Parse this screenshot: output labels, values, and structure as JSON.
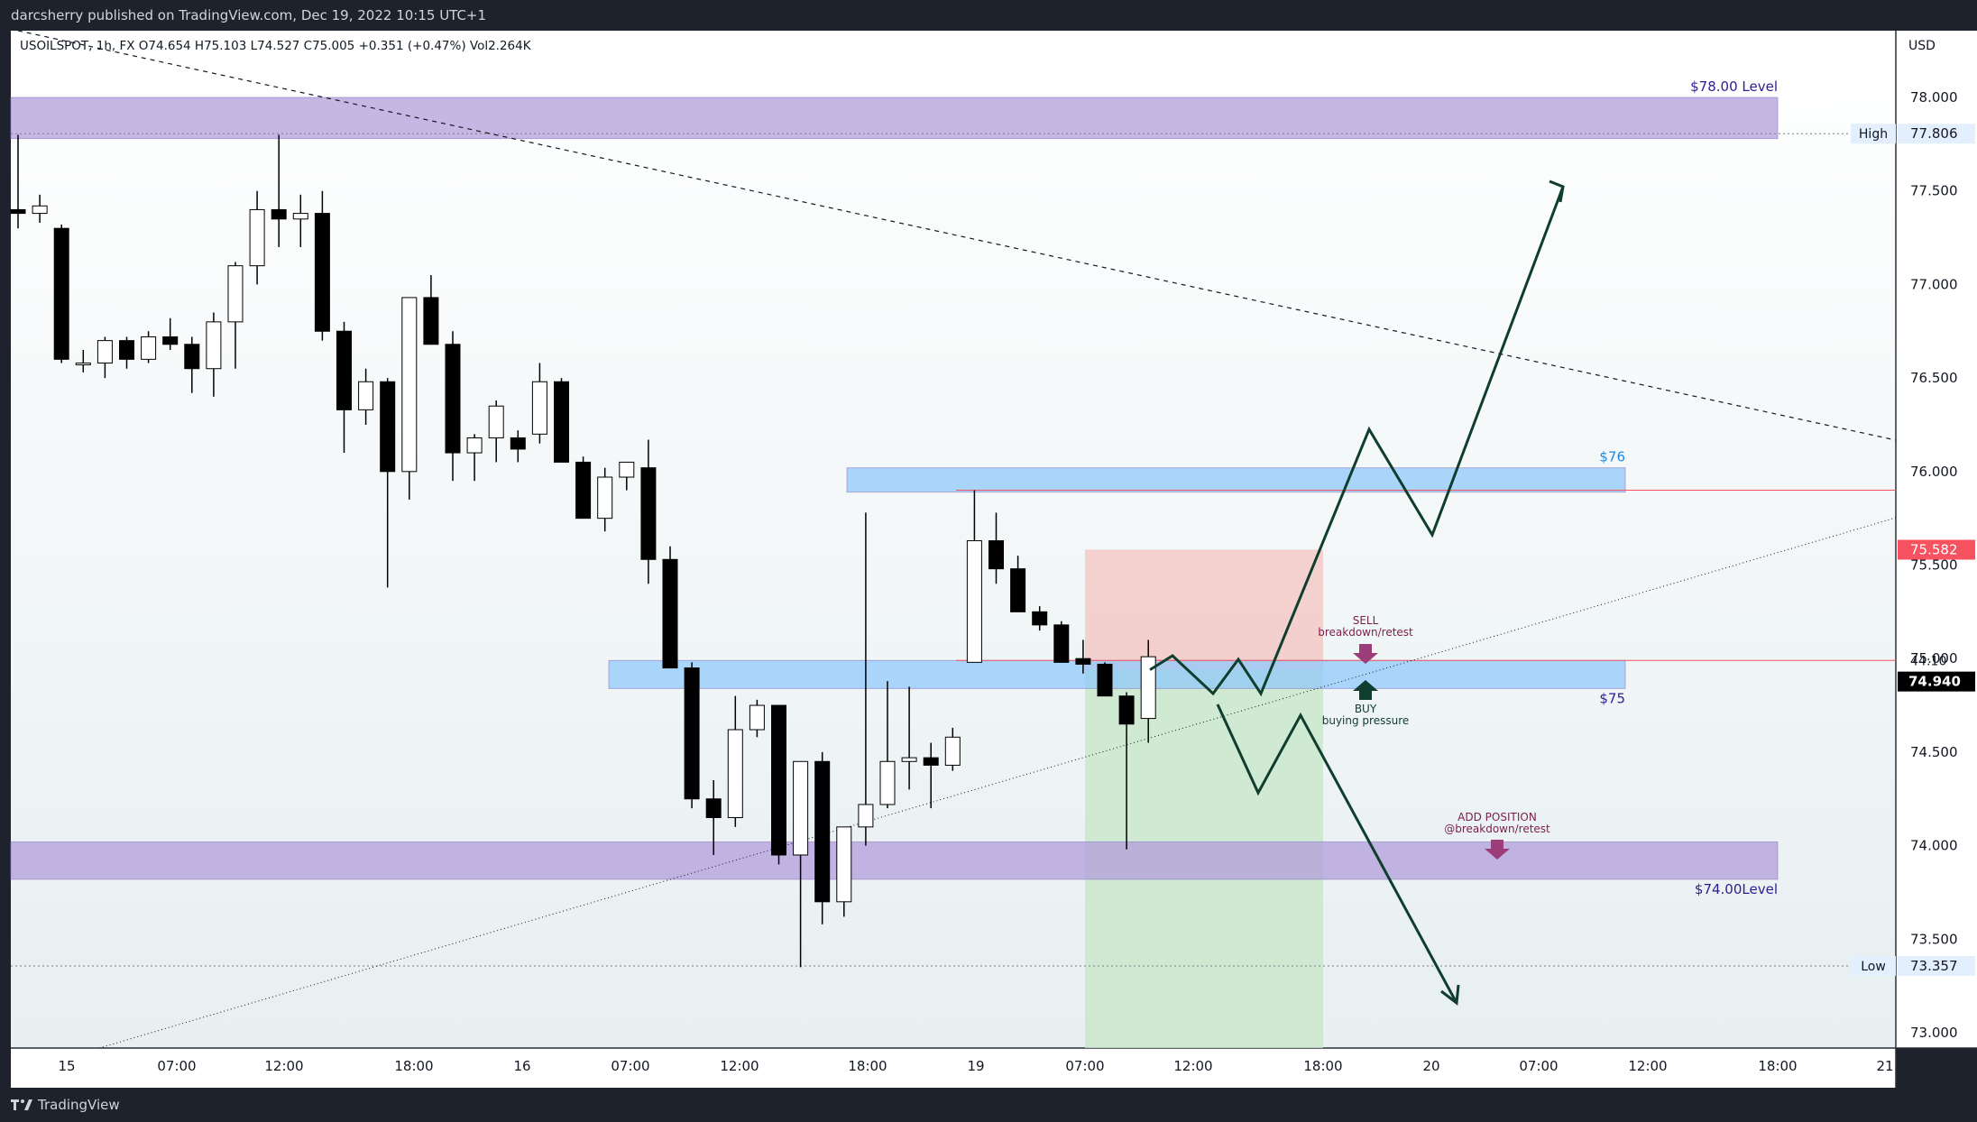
{
  "header": {
    "publisher": "darcsherry published on TradingView.com, Dec 19, 2022 10:15 UTC+1"
  },
  "footer": {
    "brand": "TradingView",
    "logo_icon": "tradingview-logo-icon"
  },
  "legend": {
    "symbol_line": "USOILSPOT, 1h, FX  O74.654  H75.103  L74.527  C75.005  +0.351 (+0.47%)  Vol2.264K"
  },
  "currency": "USD",
  "colors": {
    "up_body": "#ffffff",
    "down_body": "#000000",
    "wick": "#000000",
    "purple_zone": "#b39ddb",
    "blue_zone": "#90caf9",
    "stop_zone": "#f4c7c3",
    "target_zone": "#c8e6c9",
    "arrow_path": "#0f3d2e",
    "sell_arrow": "#9c3d7a",
    "buy_arrow": "#0f3d2e",
    "price_badge_red": "#f7525f",
    "price_badge_dark": "#000000"
  },
  "chart_data": {
    "type": "candlestick",
    "x_axis_labels": [
      "15",
      "07:00",
      "12:00",
      "18:00",
      "16",
      "07:00",
      "12:00",
      "18:00",
      "19",
      "07:00",
      "12:00",
      "18:00",
      "20",
      "07:00",
      "12:00",
      "18:00",
      "21"
    ],
    "y_axis_ticks": [
      "78.000",
      "77.500",
      "77.000",
      "76.500",
      "76.000",
      "75.500",
      "75.000",
      "74.500",
      "74.000",
      "73.500",
      "73.000"
    ],
    "ylim": [
      72.92,
      78.22
    ],
    "candles": [
      {
        "o": 77.4,
        "h": 77.8,
        "l": 77.3,
        "c": 77.38
      },
      {
        "o": 77.38,
        "h": 77.48,
        "l": 77.33,
        "c": 77.42
      },
      {
        "o": 77.3,
        "h": 77.32,
        "l": 76.58,
        "c": 76.6
      },
      {
        "o": 76.58,
        "h": 76.65,
        "l": 76.53,
        "c": 76.58
      },
      {
        "o": 76.58,
        "h": 76.72,
        "l": 76.5,
        "c": 76.7
      },
      {
        "o": 76.7,
        "h": 76.72,
        "l": 76.55,
        "c": 76.6
      },
      {
        "o": 76.6,
        "h": 76.75,
        "l": 76.58,
        "c": 76.72
      },
      {
        "o": 76.72,
        "h": 76.82,
        "l": 76.65,
        "c": 76.68
      },
      {
        "o": 76.68,
        "h": 76.72,
        "l": 76.42,
        "c": 76.55
      },
      {
        "o": 76.55,
        "h": 76.85,
        "l": 76.4,
        "c": 76.8
      },
      {
        "o": 76.8,
        "h": 77.12,
        "l": 76.55,
        "c": 77.1
      },
      {
        "o": 77.1,
        "h": 77.5,
        "l": 77.0,
        "c": 77.4
      },
      {
        "o": 77.4,
        "h": 77.8,
        "l": 77.2,
        "c": 77.35
      },
      {
        "o": 77.35,
        "h": 77.48,
        "l": 77.2,
        "c": 77.38
      },
      {
        "o": 77.38,
        "h": 77.5,
        "l": 76.7,
        "c": 76.75
      },
      {
        "o": 76.75,
        "h": 76.8,
        "l": 76.1,
        "c": 76.33
      },
      {
        "o": 76.33,
        "h": 76.55,
        "l": 76.25,
        "c": 76.48
      },
      {
        "o": 76.48,
        "h": 76.5,
        "l": 75.38,
        "c": 76.0
      },
      {
        "o": 76.0,
        "h": 76.9,
        "l": 75.85,
        "c": 76.93
      },
      {
        "o": 76.93,
        "h": 77.05,
        "l": 76.68,
        "c": 76.68
      },
      {
        "o": 76.68,
        "h": 76.75,
        "l": 75.95,
        "c": 76.1
      },
      {
        "o": 76.1,
        "h": 76.2,
        "l": 75.95,
        "c": 76.18
      },
      {
        "o": 76.18,
        "h": 76.38,
        "l": 76.05,
        "c": 76.35
      },
      {
        "o": 76.18,
        "h": 76.22,
        "l": 76.05,
        "c": 76.12
      },
      {
        "o": 76.2,
        "h": 76.58,
        "l": 76.15,
        "c": 76.48
      },
      {
        "o": 76.48,
        "h": 76.5,
        "l": 76.05,
        "c": 76.05
      },
      {
        "o": 76.05,
        "h": 76.08,
        "l": 75.75,
        "c": 75.75
      },
      {
        "o": 75.75,
        "h": 76.02,
        "l": 75.68,
        "c": 75.97
      },
      {
        "o": 75.97,
        "h": 76.05,
        "l": 75.9,
        "c": 76.05
      },
      {
        "o": 76.02,
        "h": 76.17,
        "l": 75.4,
        "c": 75.53
      },
      {
        "o": 75.53,
        "h": 75.6,
        "l": 74.95,
        "c": 74.95
      },
      {
        "o": 74.95,
        "h": 74.98,
        "l": 74.2,
        "c": 74.25
      },
      {
        "o": 74.25,
        "h": 74.35,
        "l": 73.95,
        "c": 74.15
      },
      {
        "o": 74.15,
        "h": 74.8,
        "l": 74.1,
        "c": 74.62
      },
      {
        "o": 74.62,
        "h": 74.78,
        "l": 74.58,
        "c": 74.75
      },
      {
        "o": 74.75,
        "h": 74.75,
        "l": 73.9,
        "c": 73.95
      },
      {
        "o": 73.95,
        "h": 74.45,
        "l": 73.35,
        "c": 74.45
      },
      {
        "o": 74.45,
        "h": 74.5,
        "l": 73.58,
        "c": 73.7
      },
      {
        "o": 73.7,
        "h": 74.1,
        "l": 73.62,
        "c": 74.1
      },
      {
        "o": 74.1,
        "h": 75.78,
        "l": 74.0,
        "c": 74.22
      },
      {
        "o": 74.22,
        "h": 74.88,
        "l": 74.2,
        "c": 74.45
      },
      {
        "o": 74.45,
        "h": 74.85,
        "l": 74.3,
        "c": 74.47
      },
      {
        "o": 74.47,
        "h": 74.55,
        "l": 74.2,
        "c": 74.43
      },
      {
        "o": 74.43,
        "h": 74.63,
        "l": 74.4,
        "c": 74.58
      },
      {
        "o": 74.98,
        "h": 75.9,
        "l": 74.98,
        "c": 75.63
      },
      {
        "o": 75.63,
        "h": 75.78,
        "l": 75.4,
        "c": 75.48
      },
      {
        "o": 75.48,
        "h": 75.55,
        "l": 75.25,
        "c": 75.25
      },
      {
        "o": 75.25,
        "h": 75.28,
        "l": 75.15,
        "c": 75.18
      },
      {
        "o": 75.18,
        "h": 75.2,
        "l": 74.98,
        "c": 74.98
      },
      {
        "o": 75.0,
        "h": 75.1,
        "l": 74.92,
        "c": 74.97
      },
      {
        "o": 74.97,
        "h": 74.98,
        "l": 74.8,
        "c": 74.8
      },
      {
        "o": 74.8,
        "h": 74.82,
        "l": 73.98,
        "c": 74.65
      },
      {
        "o": 74.68,
        "h": 75.1,
        "l": 74.55,
        "c": 75.01
      }
    ],
    "zones": [
      {
        "label": "$78.00 Level",
        "top": 78.0,
        "bottom": 77.78
      },
      {
        "label": "$76",
        "top": 76.02,
        "bottom": 75.89
      },
      {
        "label": "$75",
        "top": 74.99,
        "bottom": 74.84
      },
      {
        "label": "$74.00Level",
        "top": 74.02,
        "bottom": 73.82
      }
    ],
    "annotations": {
      "sell_title": "SELL",
      "sell_text": "breakdown/retest",
      "buy_title": "BUY",
      "buy_text": "buying pressure",
      "add_title": "ADD POSITION",
      "add_text": "@breakdown/retest"
    },
    "price_labels": {
      "high_label": "High",
      "high_value": "77.806",
      "low_label": "Low",
      "low_value": "73.357",
      "stop_value": "75.582",
      "countdown": "44:10",
      "last_value": "74.940"
    }
  }
}
